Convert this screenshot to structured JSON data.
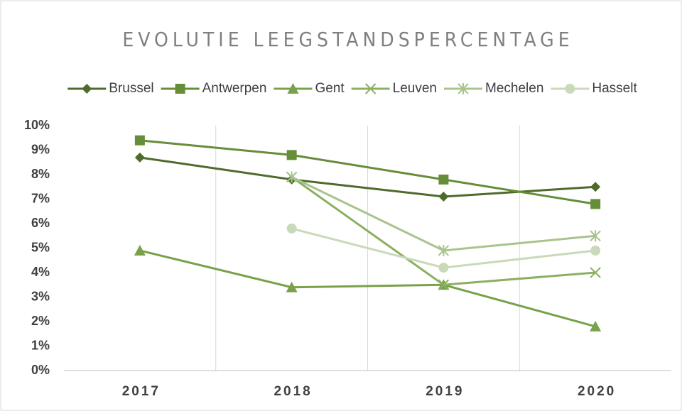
{
  "chart_data": {
    "type": "line",
    "title": "EVOLUTIE LEEGSTANDSPERCENTAGE",
    "categories": [
      "2017",
      "2018",
      "2019",
      "2020"
    ],
    "series": [
      {
        "name": "Brussel",
        "color": "#4e6b2b",
        "marker": "diamond",
        "values": [
          8.7,
          7.8,
          7.1,
          7.5
        ]
      },
      {
        "name": "Antwerpen",
        "color": "#668d37",
        "marker": "square",
        "values": [
          9.4,
          8.8,
          7.8,
          6.8
        ]
      },
      {
        "name": "Gent",
        "color": "#79a14a",
        "marker": "triangle",
        "values": [
          4.9,
          3.4,
          3.5,
          1.8
        ]
      },
      {
        "name": "Leuven",
        "color": "#8bb060",
        "marker": "x",
        "values": [
          null,
          7.9,
          3.5,
          4.0
        ]
      },
      {
        "name": "Mechelen",
        "color": "#a8c48c",
        "marker": "star",
        "values": [
          null,
          7.9,
          4.9,
          5.5
        ]
      },
      {
        "name": "Hasselt",
        "color": "#c9d9b9",
        "marker": "circle",
        "values": [
          null,
          5.8,
          4.2,
          4.9
        ]
      }
    ],
    "ylim": [
      0,
      10
    ],
    "yticks": [
      {
        "value": 0,
        "label": "0%"
      },
      {
        "value": 1,
        "label": "1%"
      },
      {
        "value": 2,
        "label": "2%"
      },
      {
        "value": 3,
        "label": "3%"
      },
      {
        "value": 4,
        "label": "4%"
      },
      {
        "value": 5,
        "label": "5%"
      },
      {
        "value": 6,
        "label": "6%"
      },
      {
        "value": 7,
        "label": "7%"
      },
      {
        "value": 8,
        "label": "8%"
      },
      {
        "value": 9,
        "label": "9%"
      },
      {
        "value": 10,
        "label": "10%"
      }
    ],
    "legend": "top"
  }
}
